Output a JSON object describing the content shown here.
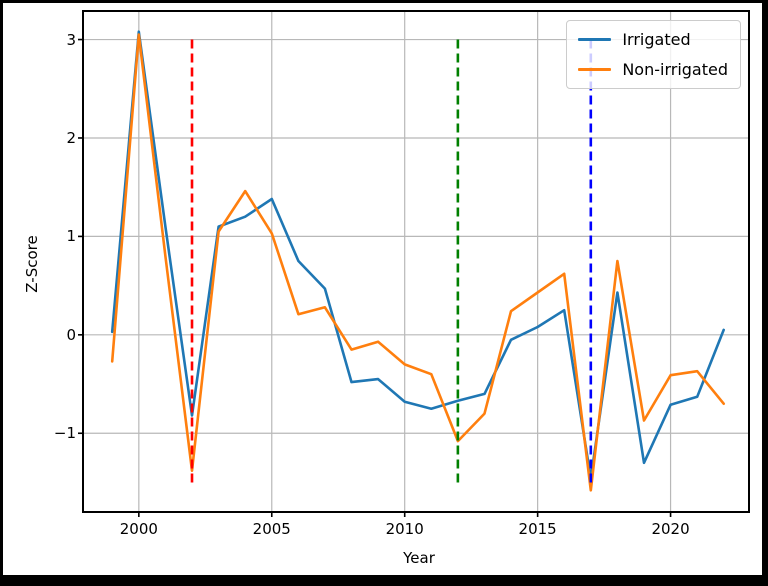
{
  "chart": {
    "xlabel": "Year",
    "ylabel": "Z-Score"
  },
  "legend": {
    "items": [
      {
        "label": "Irrigated",
        "color": "#1f77b4"
      },
      {
        "label": "Non-irrigated",
        "color": "#ff7f0e"
      }
    ]
  },
  "chart_data": {
    "type": "line",
    "title": "",
    "xlabel": "Year",
    "ylabel": "Z-Score",
    "x": [
      1999,
      2000,
      2001,
      2002,
      2003,
      2004,
      2005,
      2006,
      2007,
      2008,
      2009,
      2010,
      2011,
      2012,
      2013,
      2014,
      2015,
      2016,
      2017,
      2018,
      2019,
      2020,
      2021,
      2022
    ],
    "series": [
      {
        "name": "Irrigated",
        "color": "#1f77b4",
        "values": [
          0.03,
          3.08,
          1.1,
          -0.82,
          1.1,
          1.2,
          1.38,
          0.75,
          0.47,
          -0.48,
          -0.45,
          -0.68,
          -0.75,
          -0.67,
          -0.6,
          -0.05,
          0.08,
          0.25,
          -1.46,
          0.43,
          -1.3,
          -0.71,
          -0.63,
          0.05
        ]
      },
      {
        "name": "Non-irrigated",
        "color": "#ff7f0e",
        "values": [
          -0.27,
          3.05,
          0.8,
          -1.38,
          1.05,
          1.46,
          1.03,
          0.21,
          0.28,
          -0.15,
          -0.07,
          -0.3,
          -0.4,
          -1.08,
          -0.8,
          0.24,
          0.43,
          0.62,
          -1.58,
          0.75,
          -0.87,
          -0.41,
          -0.37,
          -0.7
        ]
      }
    ],
    "vlines": [
      {
        "x": 2002,
        "color": "#ff0000",
        "style": "dashed",
        "y_from": -1.5,
        "y_to": 3.0
      },
      {
        "x": 2012,
        "color": "#008000",
        "style": "dashed",
        "y_from": -1.5,
        "y_to": 3.0
      },
      {
        "x": 2017,
        "color": "#0000ff",
        "style": "dashed",
        "y_from": -1.5,
        "y_to": 3.0
      }
    ],
    "xticks": [
      2000,
      2005,
      2010,
      2015,
      2020
    ],
    "yticks": [
      -1,
      0,
      1,
      2,
      3
    ],
    "xlim": [
      1997.9,
      2022.95
    ],
    "ylim": [
      -1.8,
      3.29
    ],
    "grid": true,
    "grid_color": "#b8b8b8",
    "legend_position": "upper right"
  }
}
